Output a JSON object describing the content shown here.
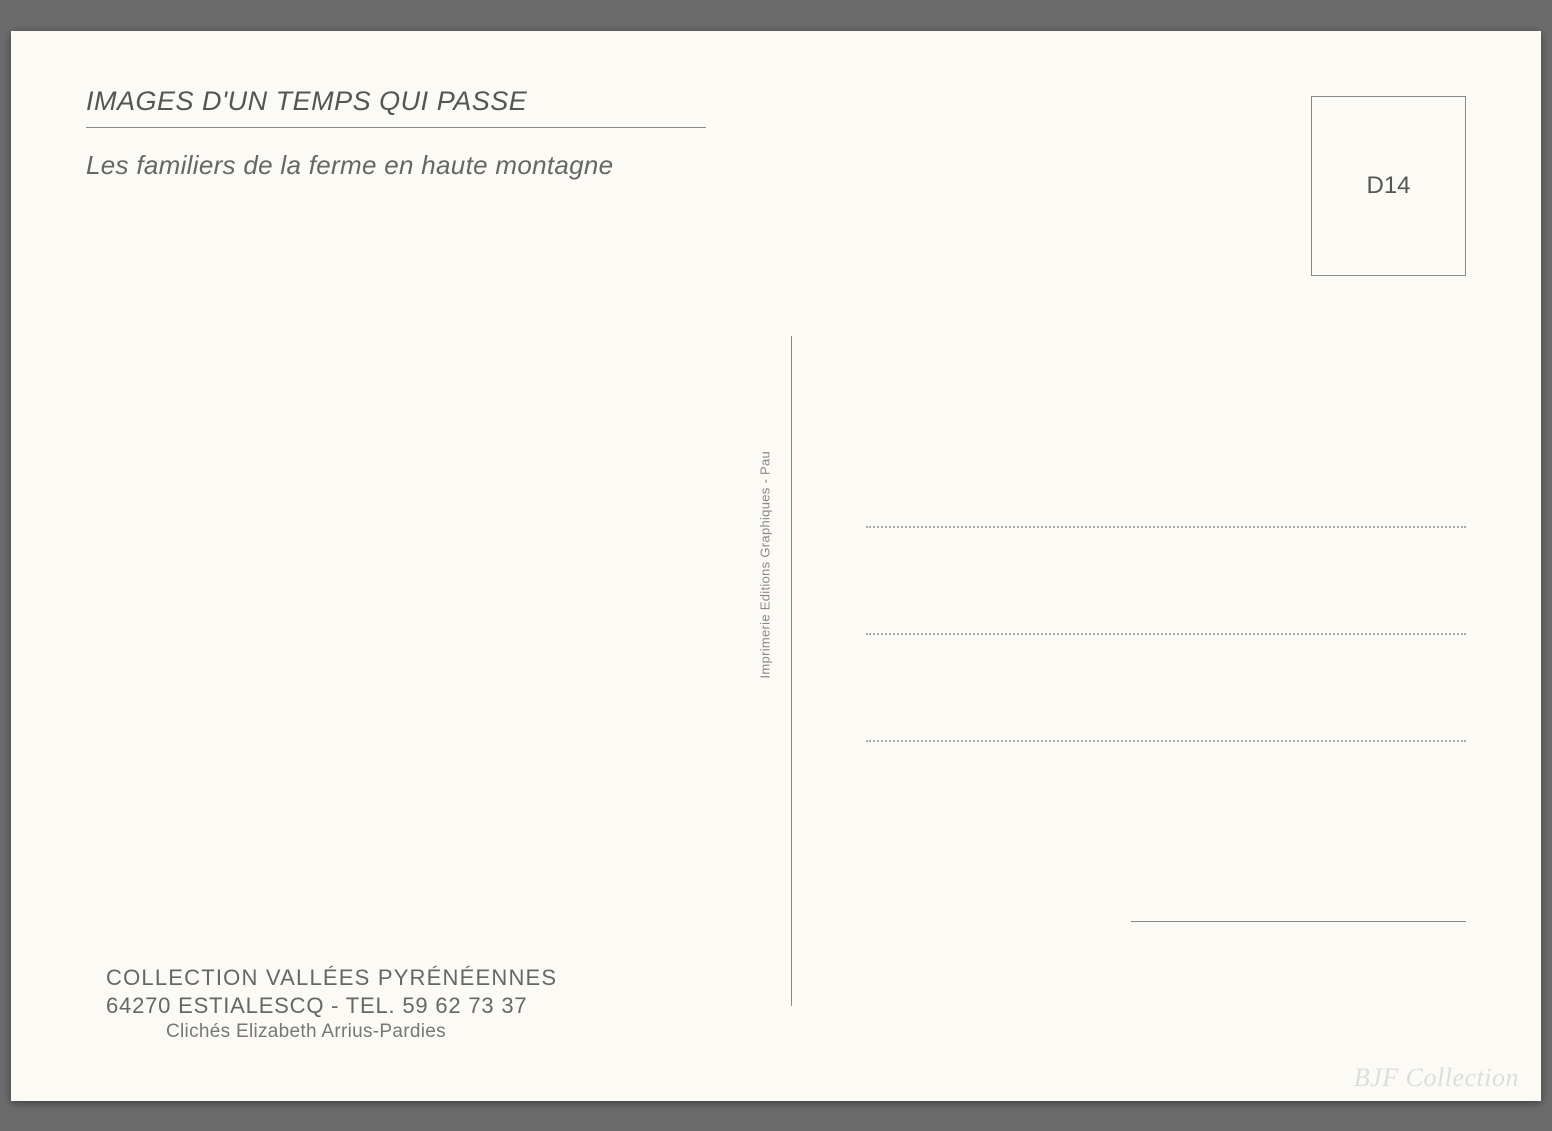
{
  "postcard": {
    "title": "IMAGES D'UN TEMPS QUI PASSE",
    "subtitle": "Les familiers de la ferme en haute montagne",
    "stamp_code": "D14",
    "printer_credit": "Imprimerie Editions Graphiques - Pau",
    "footer": {
      "collection": "COLLECTION VALLÉES PYRÉNÉENNES",
      "address": "64270 ESTIALESCQ - TEL. 59 62 73 37",
      "credit": "Clichés Elizabeth Arrius-Pardies"
    },
    "watermark": "BJF Collection"
  },
  "styling": {
    "background_color": "#6b6b6b",
    "card_color": "#fcfaf5",
    "text_color": "#555555",
    "line_color": "#888888",
    "dotted_color": "#aaaaaa",
    "watermark_color": "#dddddd",
    "title_fontsize": 27,
    "subtitle_fontsize": 26,
    "footer_fontsize": 22,
    "credit_fontsize": 19,
    "address_line_count": 3,
    "address_line_spacing": 105
  }
}
